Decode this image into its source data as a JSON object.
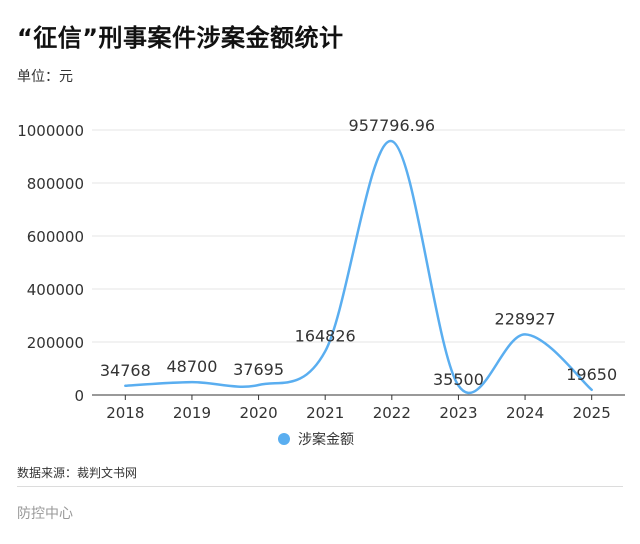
{
  "header": {
    "title": "“征信”刑事案件涉案金额统计",
    "unit": "单位：元"
  },
  "chart_data": {
    "type": "line",
    "smooth": true,
    "categories": [
      "2018",
      "2019",
      "2020",
      "2021",
      "2022",
      "2023",
      "2024",
      "2025"
    ],
    "series": [
      {
        "name": "涉案金额",
        "values": [
          34768,
          48700,
          37695,
          164826,
          957796.96,
          35500,
          228927,
          19650
        ],
        "labels": [
          "34768",
          "48700",
          "37695",
          "164826",
          "957796.96",
          "35500",
          "228927",
          "19650"
        ]
      }
    ],
    "y_ticks": [
      "0",
      "200000",
      "400000",
      "600000",
      "800000",
      "1000000"
    ],
    "ylim": [
      0,
      1000000
    ],
    "grid": true,
    "legend_position": "bottom-center"
  },
  "colors": {
    "line": "#5aaef0",
    "grid": "#e6e6e6",
    "axis": "#333333"
  },
  "source": "数据来源：裁判文书网",
  "footer": "防控中心"
}
